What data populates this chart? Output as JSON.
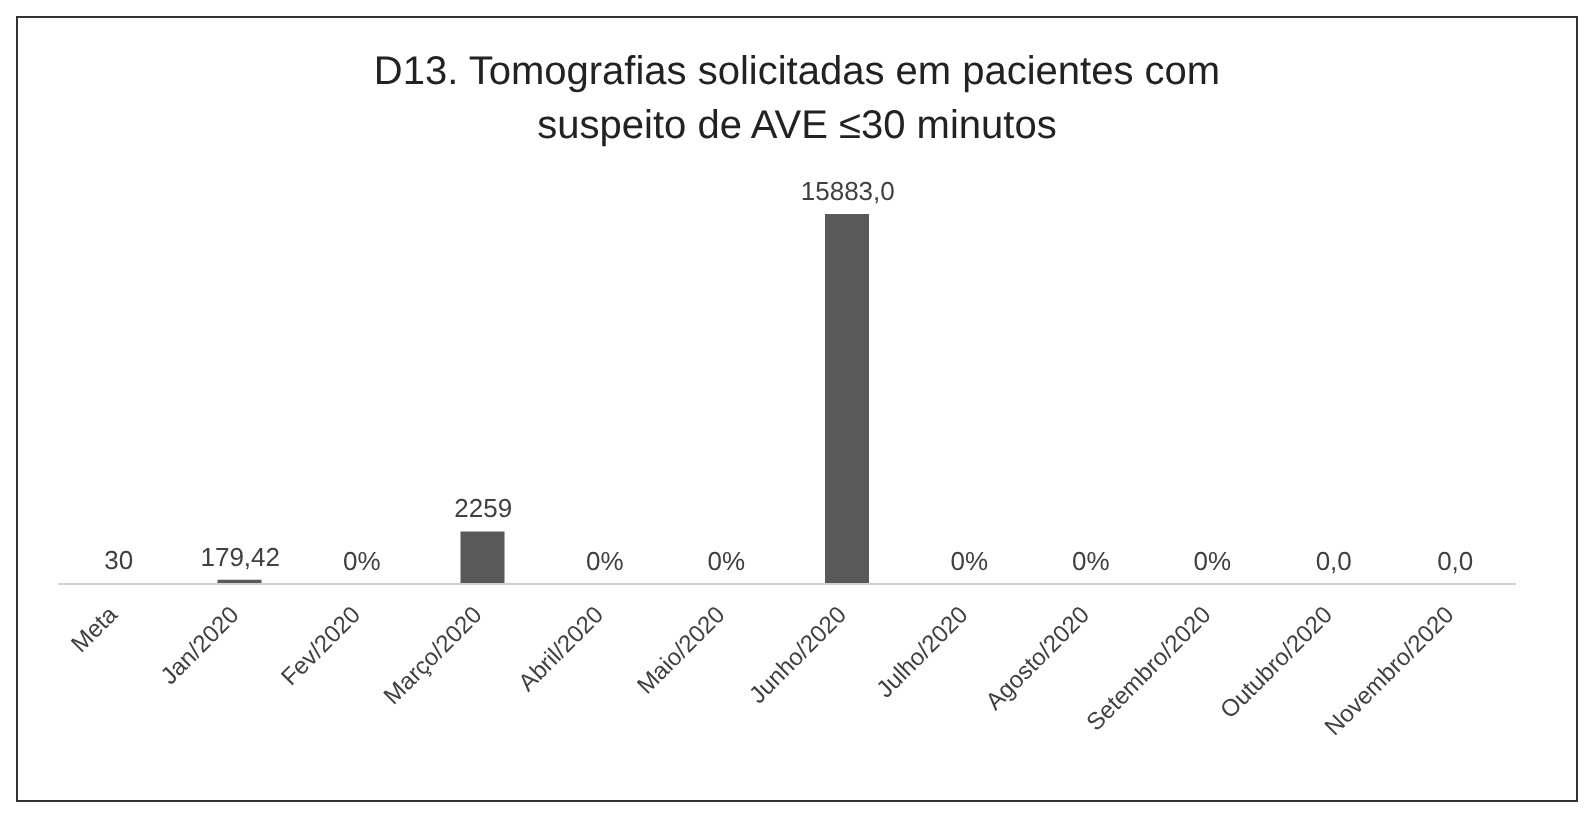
{
  "chart_data": {
    "type": "bar",
    "title": "D13. Tomografias solicitadas em pacientes com suspeito de AVE ≤30 minutos",
    "categories": [
      "Meta",
      "Jan/2020",
      "Fev/2020",
      "Março/2020",
      "Abril/2020",
      "Maio/2020",
      "Junho/2020",
      "Julho/2020",
      "Agosto/2020",
      "Setembro/2020",
      "Outubro/2020",
      "Novembro/2020"
    ],
    "values": [
      30,
      179.42,
      0,
      2259,
      0,
      0,
      15883,
      0,
      0,
      0,
      0,
      0
    ],
    "value_labels": [
      "30",
      "179,42",
      "0%",
      "2259",
      "0%",
      "0%",
      "15883,0",
      "0%",
      "0%",
      "0%",
      "0,0",
      "0,0"
    ],
    "color": "#595959",
    "grid": false,
    "legend": false
  }
}
